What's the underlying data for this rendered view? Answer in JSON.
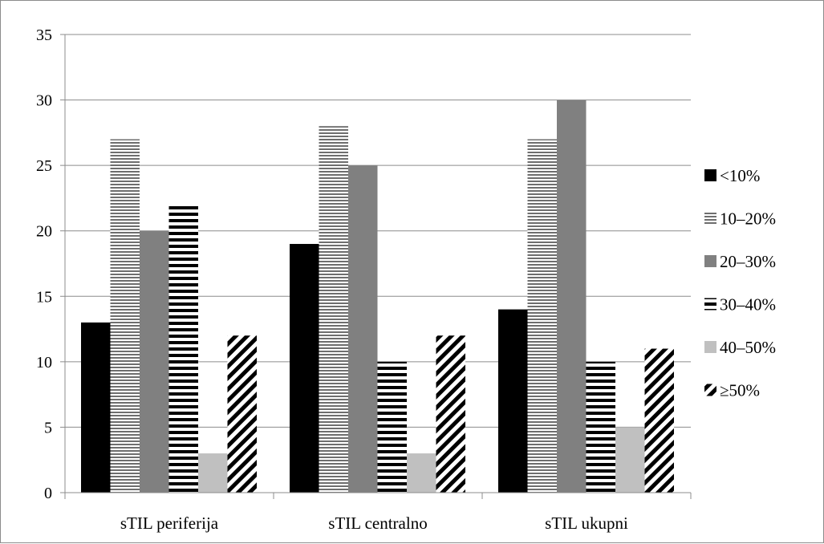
{
  "chart_data": {
    "type": "bar",
    "title": "",
    "xlabel": "",
    "ylabel": "",
    "ylim": [
      0,
      35
    ],
    "yticks": [
      0,
      5,
      10,
      15,
      20,
      25,
      30,
      35
    ],
    "grid": true,
    "legend_position": "right",
    "categories": [
      "sTIL periferija",
      "sTIL centralno",
      "sTIL ukupni"
    ],
    "series": [
      {
        "name": "<10%",
        "values": [
          13,
          19,
          14
        ],
        "pattern": "solid-black"
      },
      {
        "name": "10–20%",
        "values": [
          27,
          28,
          27
        ],
        "pattern": "thin-horizontal-lines"
      },
      {
        "name": "20–30%",
        "values": [
          20,
          25,
          30
        ],
        "pattern": "solid-gray"
      },
      {
        "name": "30–40%",
        "values": [
          22,
          10,
          10
        ],
        "pattern": "thick-horizontal-lines"
      },
      {
        "name": "40–50%",
        "values": [
          3,
          3,
          5
        ],
        "pattern": "solid-light-gray"
      },
      {
        "name": "≥50%",
        "values": [
          12,
          12,
          11
        ],
        "pattern": "diagonal-stripes"
      }
    ]
  }
}
